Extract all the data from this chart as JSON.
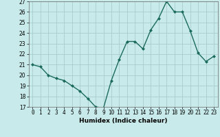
{
  "x": [
    0,
    1,
    2,
    3,
    4,
    5,
    6,
    7,
    8,
    9,
    10,
    11,
    12,
    13,
    14,
    15,
    16,
    17,
    18,
    19,
    20,
    21,
    22,
    23
  ],
  "y": [
    21.0,
    20.8,
    20.0,
    19.7,
    19.5,
    19.0,
    18.5,
    17.8,
    17.0,
    16.9,
    19.5,
    21.5,
    23.2,
    23.2,
    22.5,
    24.3,
    25.4,
    27.0,
    26.0,
    26.0,
    24.2,
    22.1,
    21.3,
    21.8
  ],
  "line_color": "#1a6b5a",
  "marker": "D",
  "marker_size": 2,
  "line_width": 1.0,
  "bg_color": "#c8eaea",
  "grid_color": "#a8cccc",
  "xlabel": "Humidex (Indice chaleur)",
  "xlim": [
    -0.5,
    23.5
  ],
  "ylim": [
    17,
    27
  ],
  "yticks": [
    17,
    18,
    19,
    20,
    21,
    22,
    23,
    24,
    25,
    26,
    27
  ],
  "xticks": [
    0,
    1,
    2,
    3,
    4,
    5,
    6,
    7,
    8,
    9,
    10,
    11,
    12,
    13,
    14,
    15,
    16,
    17,
    18,
    19,
    20,
    21,
    22,
    23
  ],
  "label_fontsize": 6.5,
  "tick_fontsize": 5.5
}
